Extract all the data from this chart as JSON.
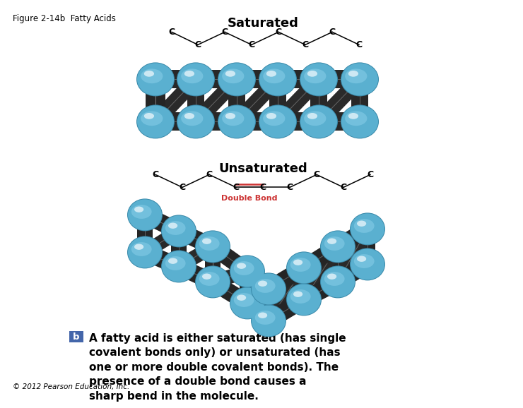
{
  "title": "Figure 2-14b  Fatty Acids",
  "saturated_label": "Saturated",
  "unsaturated_label": "Unsaturated",
  "double_bond_label": "Double Bond",
  "b_label": "b",
  "body_text": "A fatty acid is either saturated (has single\ncovalent bonds only) or unsaturated (has\none or more double covalent bonds). The\npresence of a double bond causes a\nsharp bend in the molecule.",
  "copyright": "© 2012 Pearson Education, Inc.",
  "background_color": "#ffffff",
  "ball_color_light": "#7ec8e3",
  "ball_color_mid": "#5ab0d0",
  "ball_color_dark": "#3a8aaa",
  "dark_color": "#1e1e1e",
  "dark_color2": "#3a3a3a",
  "bond_color": "#cc3333",
  "b_box_color": "#4466aa",
  "title_fontsize": 8.5,
  "label_fontsize": 13,
  "text_fontsize": 11,
  "carbon_label_fontsize": 9
}
